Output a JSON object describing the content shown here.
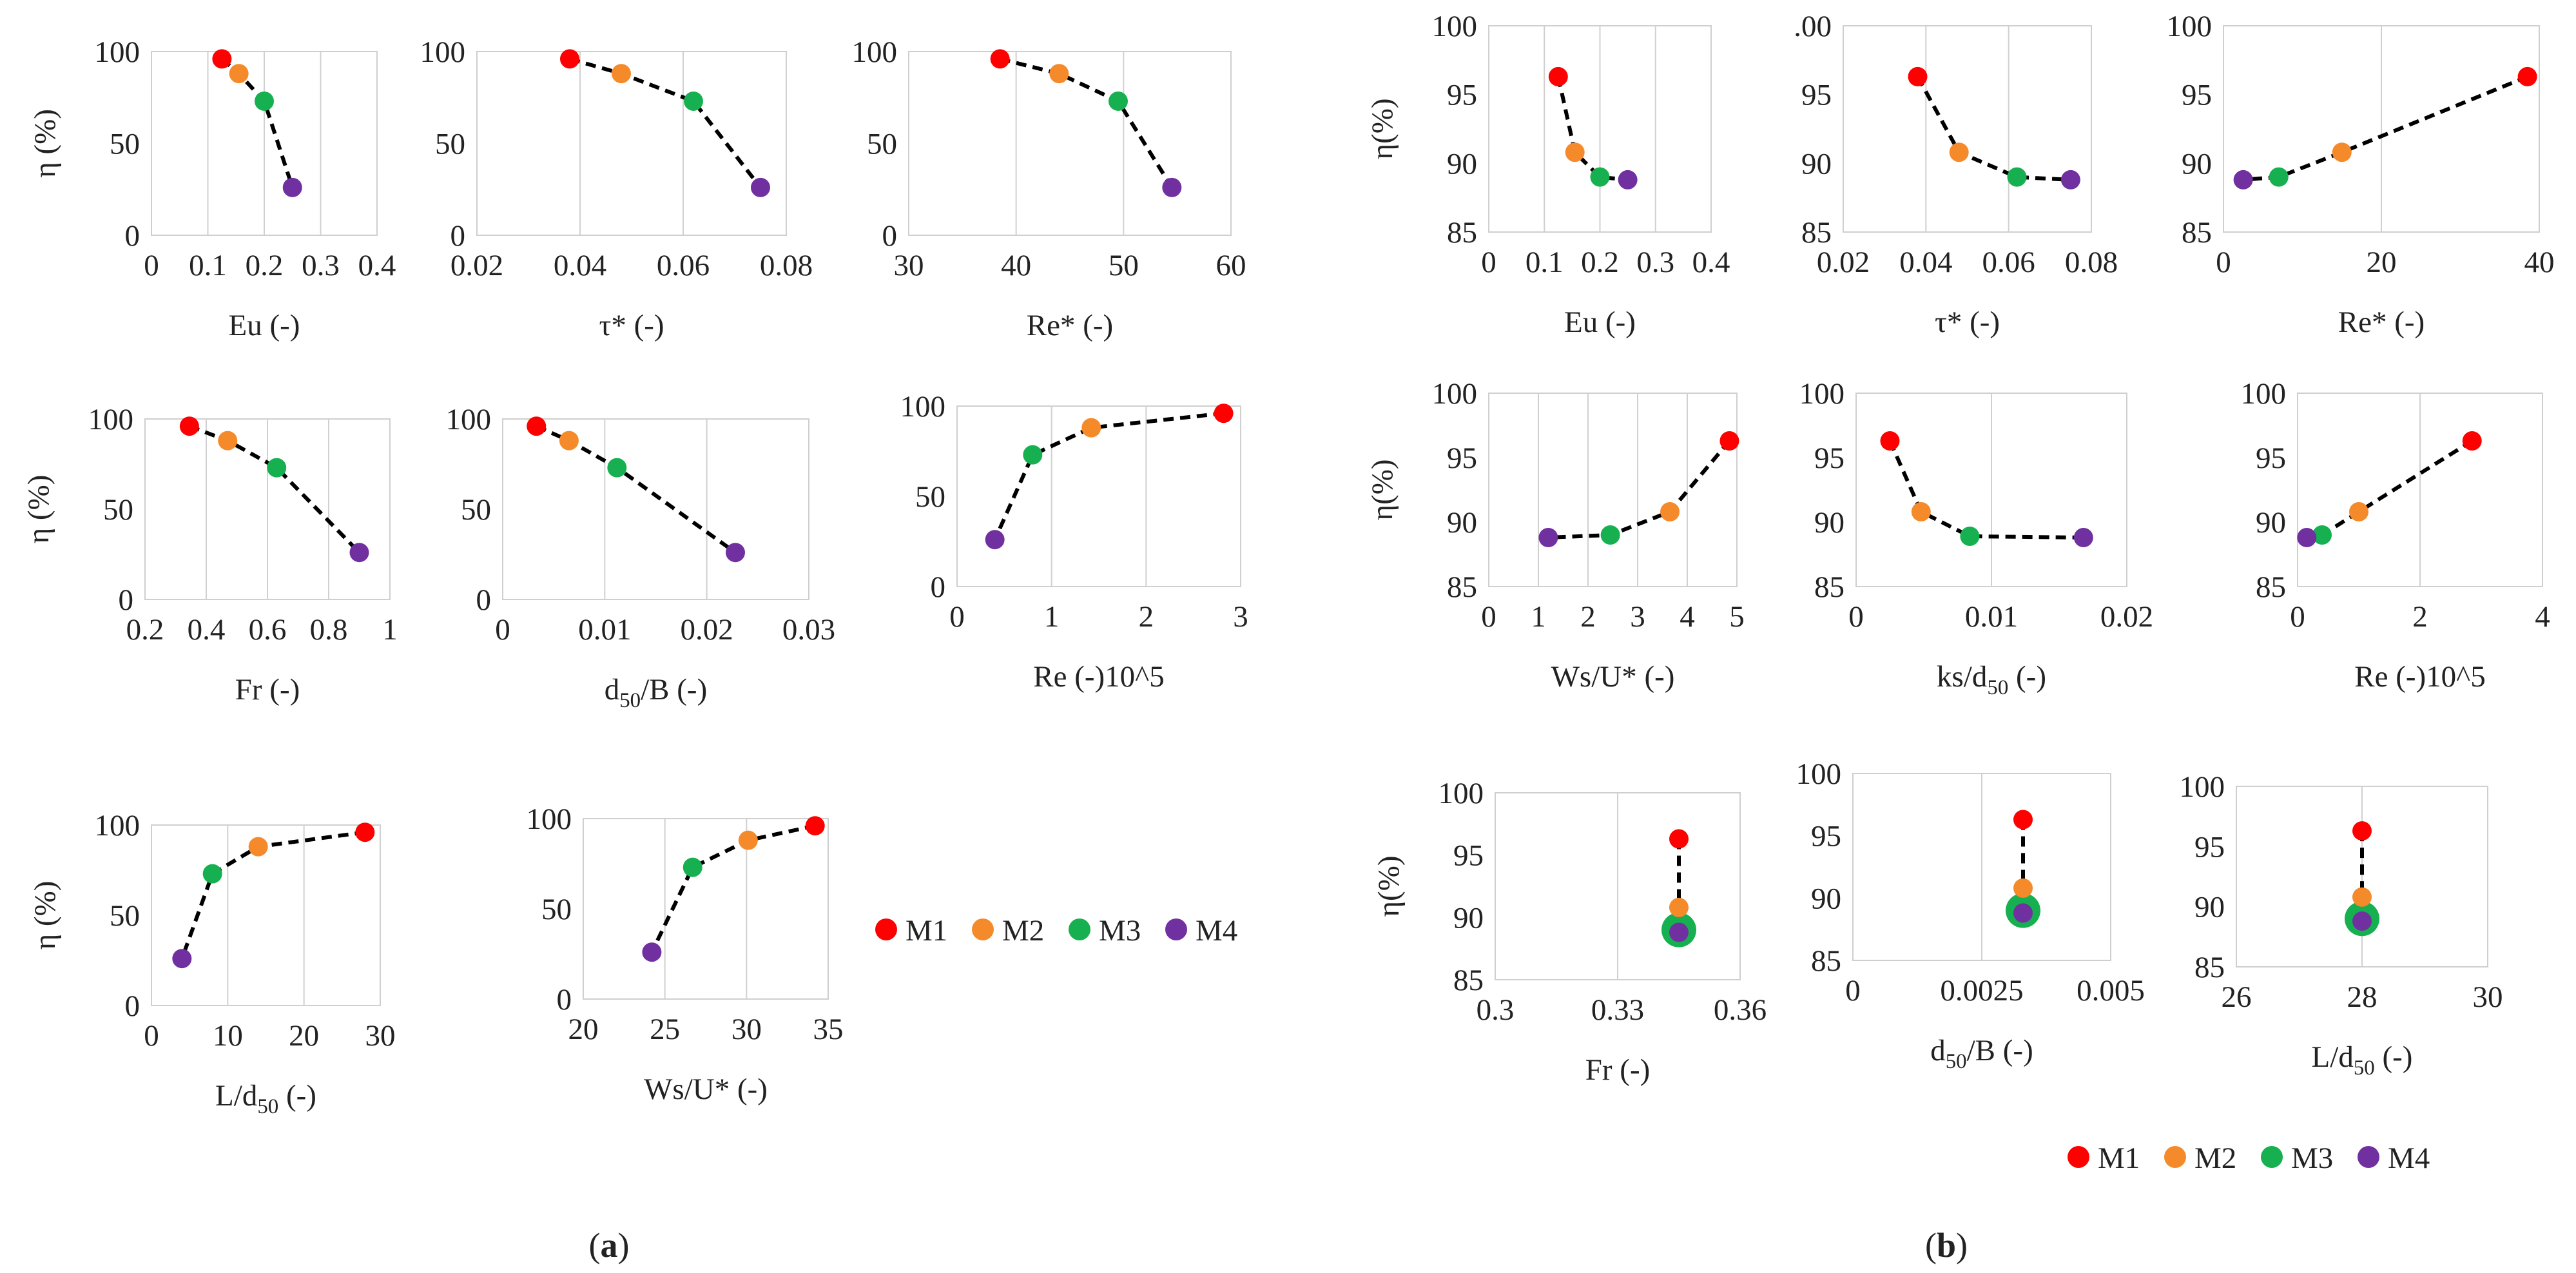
{
  "colors": {
    "M1": "#ff0000",
    "M2": "#f58a2b",
    "M3": "#16b050",
    "M4": "#7030a0"
  },
  "panel_labels": [
    "(a)",
    "(b)"
  ],
  "legends": [
    {
      "panel": "a",
      "items": [
        "M1",
        "M2",
        "M3",
        "M4"
      ]
    },
    {
      "panel": "b",
      "items": [
        "M1",
        "M2",
        "M3",
        "M4"
      ]
    }
  ],
  "chart_data": [
    {
      "id": "a1",
      "type": "scatter",
      "xlabel": "Eu (-)",
      "ylabel": "η (%)",
      "xlim": [
        0,
        0.4
      ],
      "ylim": [
        0,
        100
      ],
      "xticks": [
        "0",
        "0.1",
        "0.2",
        "0.3",
        "0.4"
      ],
      "yticks": [
        "0",
        "50",
        "100"
      ],
      "series": [
        {
          "name": "M1",
          "x": 0.125,
          "y": 96
        },
        {
          "name": "M2",
          "x": 0.155,
          "y": 88
        },
        {
          "name": "M3",
          "x": 0.2,
          "y": 73
        },
        {
          "name": "M4",
          "x": 0.25,
          "y": 26
        }
      ]
    },
    {
      "id": "a2",
      "type": "scatter",
      "xlabel": "τ* (-)",
      "ylabel": "",
      "xlim": [
        0.02,
        0.08
      ],
      "ylim": [
        0,
        100
      ],
      "xticks": [
        "0.02",
        "0.04",
        "0.06",
        "0.08"
      ],
      "yticks": [
        "0",
        "50",
        "100"
      ],
      "series": [
        {
          "name": "M1",
          "x": 0.038,
          "y": 96
        },
        {
          "name": "M2",
          "x": 0.048,
          "y": 88
        },
        {
          "name": "M3",
          "x": 0.062,
          "y": 73
        },
        {
          "name": "M4",
          "x": 0.075,
          "y": 26
        }
      ]
    },
    {
      "id": "a3",
      "type": "scatter",
      "xlabel": "Re* (-)",
      "ylabel": "",
      "xlim": [
        30,
        60
      ],
      "ylim": [
        0,
        100
      ],
      "xticks": [
        "30",
        "40",
        "50",
        "60"
      ],
      "yticks": [
        "0",
        "50",
        "100"
      ],
      "series": [
        {
          "name": "M1",
          "x": 38.5,
          "y": 96
        },
        {
          "name": "M2",
          "x": 44,
          "y": 88
        },
        {
          "name": "M3",
          "x": 49.5,
          "y": 73
        },
        {
          "name": "M4",
          "x": 54.5,
          "y": 26
        }
      ]
    },
    {
      "id": "a4",
      "type": "scatter",
      "xlabel": "Fr (-)",
      "ylabel": "η (%)",
      "xlim": [
        0.2,
        1
      ],
      "ylim": [
        0,
        100
      ],
      "xticks": [
        "0.2",
        "0.4",
        "0.6",
        "0.8",
        "1"
      ],
      "yticks": [
        "0",
        "50",
        "100"
      ],
      "series": [
        {
          "name": "M1",
          "x": 0.345,
          "y": 96
        },
        {
          "name": "M2",
          "x": 0.47,
          "y": 88
        },
        {
          "name": "M3",
          "x": 0.63,
          "y": 73
        },
        {
          "name": "M4",
          "x": 0.9,
          "y": 26
        }
      ]
    },
    {
      "id": "a5",
      "type": "scatter",
      "xlabel": "d50/B (-)",
      "ylabel": "",
      "xlim": [
        0,
        0.03
      ],
      "ylim": [
        0,
        100
      ],
      "xticks": [
        "0",
        "0.01",
        "0.02",
        "0.03"
      ],
      "yticks": [
        "0",
        "50",
        "100"
      ],
      "series": [
        {
          "name": "M1",
          "x": 0.0033,
          "y": 96
        },
        {
          "name": "M2",
          "x": 0.0065,
          "y": 88
        },
        {
          "name": "M3",
          "x": 0.0112,
          "y": 73
        },
        {
          "name": "M4",
          "x": 0.0228,
          "y": 26
        }
      ]
    },
    {
      "id": "a6",
      "type": "scatter",
      "xlabel": "Re (-)10^5",
      "ylabel": "",
      "xlim": [
        0,
        3
      ],
      "ylim": [
        0,
        100
      ],
      "xticks": [
        "0",
        "1",
        "2",
        "3"
      ],
      "yticks": [
        "0",
        "50",
        "100"
      ],
      "series": [
        {
          "name": "M1",
          "x": 2.82,
          "y": 96
        },
        {
          "name": "M2",
          "x": 1.42,
          "y": 88
        },
        {
          "name": "M3",
          "x": 0.8,
          "y": 73
        },
        {
          "name": "M4",
          "x": 0.4,
          "y": 26
        }
      ]
    },
    {
      "id": "a7",
      "type": "scatter",
      "xlabel": "L/d50 (-)",
      "ylabel": "η (%)",
      "xlim": [
        0,
        30
      ],
      "ylim": [
        0,
        100
      ],
      "xticks": [
        "0",
        "10",
        "20",
        "30"
      ],
      "yticks": [
        "0",
        "50",
        "100"
      ],
      "series": [
        {
          "name": "M1",
          "x": 28,
          "y": 96
        },
        {
          "name": "M2",
          "x": 14,
          "y": 88
        },
        {
          "name": "M3",
          "x": 8,
          "y": 73
        },
        {
          "name": "M4",
          "x": 4,
          "y": 26
        }
      ]
    },
    {
      "id": "a8",
      "type": "scatter",
      "xlabel": "Ws/U* (-)",
      "ylabel": "",
      "xlim": [
        20,
        35
      ],
      "ylim": [
        0,
        100
      ],
      "xticks": [
        "20",
        "25",
        "30",
        "35"
      ],
      "yticks": [
        "0",
        "50",
        "100"
      ],
      "series": [
        {
          "name": "M1",
          "x": 34.2,
          "y": 96
        },
        {
          "name": "M2",
          "x": 30.1,
          "y": 88
        },
        {
          "name": "M3",
          "x": 26.7,
          "y": 73
        },
        {
          "name": "M4",
          "x": 24.2,
          "y": 26
        }
      ]
    },
    {
      "id": "b1",
      "type": "scatter",
      "xlabel": "Eu (-)",
      "ylabel": "η(%)",
      "xlim": [
        0,
        0.4
      ],
      "ylim": [
        85,
        100
      ],
      "xticks": [
        "0",
        "0.1",
        "0.2",
        "0.3",
        "0.4"
      ],
      "yticks": [
        "85",
        "90",
        "95",
        "100"
      ],
      "series": [
        {
          "name": "M1",
          "x": 0.125,
          "y": 96.3
        },
        {
          "name": "M2",
          "x": 0.155,
          "y": 90.8
        },
        {
          "name": "M3",
          "x": 0.2,
          "y": 89
        },
        {
          "name": "M4",
          "x": 0.25,
          "y": 88.8
        }
      ]
    },
    {
      "id": "b2",
      "type": "scatter",
      "xlabel": "τ* (-)",
      "ylabel": "",
      "xlim": [
        0.02,
        0.08
      ],
      "ylim": [
        85,
        100
      ],
      "xticks": [
        "0.02",
        "0.04",
        "0.06",
        "0.08"
      ],
      "yticks": [
        "85",
        "90",
        "95",
        ".00"
      ],
      "series": [
        {
          "name": "M1",
          "x": 0.038,
          "y": 96.3
        },
        {
          "name": "M2",
          "x": 0.048,
          "y": 90.8
        },
        {
          "name": "M3",
          "x": 0.062,
          "y": 89
        },
        {
          "name": "M4",
          "x": 0.075,
          "y": 88.8
        }
      ]
    },
    {
      "id": "b3",
      "type": "scatter",
      "xlabel": "Re* (-)",
      "ylabel": "",
      "xlim": [
        0,
        40
      ],
      "ylim": [
        85,
        100
      ],
      "xticks": [
        "0",
        "20",
        "40"
      ],
      "yticks": [
        "85",
        "90",
        "95",
        "100"
      ],
      "series": [
        {
          "name": "M1",
          "x": 38.5,
          "y": 96.3
        },
        {
          "name": "M2",
          "x": 15,
          "y": 90.8
        },
        {
          "name": "M3",
          "x": 7,
          "y": 89
        },
        {
          "name": "M4",
          "x": 2.5,
          "y": 88.8
        }
      ]
    },
    {
      "id": "b4",
      "type": "scatter",
      "xlabel": "Ws/U* (-)",
      "ylabel": "η(%)",
      "xlim": [
        0,
        5
      ],
      "ylim": [
        85,
        100
      ],
      "xticks": [
        "0",
        "1",
        "2",
        "3",
        "4",
        "5"
      ],
      "yticks": [
        "85",
        "90",
        "95",
        "100"
      ],
      "series": [
        {
          "name": "M1",
          "x": 4.85,
          "y": 96.3
        },
        {
          "name": "M2",
          "x": 3.65,
          "y": 90.8
        },
        {
          "name": "M3",
          "x": 2.45,
          "y": 89
        },
        {
          "name": "M4",
          "x": 1.2,
          "y": 88.8
        }
      ]
    },
    {
      "id": "b5",
      "type": "scatter",
      "xlabel": "ks/d50 (-)",
      "ylabel": "",
      "xlim": [
        0,
        0.02
      ],
      "ylim": [
        85,
        100
      ],
      "xticks": [
        "0",
        "0.01",
        "0.02"
      ],
      "yticks": [
        "85",
        "90",
        "95",
        "100"
      ],
      "series": [
        {
          "name": "M1",
          "x": 0.0025,
          "y": 96.3
        },
        {
          "name": "M2",
          "x": 0.0048,
          "y": 90.8
        },
        {
          "name": "M3",
          "x": 0.0084,
          "y": 88.9
        },
        {
          "name": "M4",
          "x": 0.0168,
          "y": 88.8
        }
      ]
    },
    {
      "id": "b6",
      "type": "scatter",
      "xlabel": "Re (-)10^5",
      "ylabel": "",
      "xlim": [
        0,
        4
      ],
      "ylim": [
        85,
        100
      ],
      "xticks": [
        "0",
        "2",
        "4"
      ],
      "yticks": [
        "85",
        "90",
        "95",
        "100"
      ],
      "series": [
        {
          "name": "M1",
          "x": 2.85,
          "y": 96.3
        },
        {
          "name": "M2",
          "x": 1.0,
          "y": 90.8
        },
        {
          "name": "M3",
          "x": 0.4,
          "y": 89
        },
        {
          "name": "M4",
          "x": 0.15,
          "y": 88.8
        }
      ]
    },
    {
      "id": "b7",
      "type": "scatter",
      "xlabel": "Fr (-)",
      "ylabel": "η(%)",
      "xlim": [
        0.3,
        0.36
      ],
      "ylim": [
        85,
        100
      ],
      "xticks": [
        "0.3",
        "0.33",
        "0.36"
      ],
      "yticks": [
        "85",
        "90",
        "95",
        "100"
      ],
      "series": [
        {
          "name": "M1",
          "x": 0.345,
          "y": 96.3
        },
        {
          "name": "M2",
          "x": 0.345,
          "y": 90.8
        },
        {
          "name": "M3",
          "x": 0.345,
          "y": 89,
          "large": true
        },
        {
          "name": "M4",
          "x": 0.345,
          "y": 88.8
        }
      ]
    },
    {
      "id": "b8",
      "type": "scatter",
      "xlabel": "d50/B (-)",
      "ylabel": "",
      "xlim": [
        0,
        0.005
      ],
      "ylim": [
        85,
        100
      ],
      "xticks": [
        "0",
        "0.0025",
        "0.005"
      ],
      "yticks": [
        "85",
        "90",
        "95",
        "100"
      ],
      "series": [
        {
          "name": "M1",
          "x": 0.0033,
          "y": 96.3
        },
        {
          "name": "M2",
          "x": 0.0033,
          "y": 90.8
        },
        {
          "name": "M3",
          "x": 0.0033,
          "y": 89,
          "large": true
        },
        {
          "name": "M4",
          "x": 0.0033,
          "y": 88.8
        }
      ]
    },
    {
      "id": "b9",
      "type": "scatter",
      "xlabel": "L/d50 (-)",
      "ylabel": "",
      "xlim": [
        26,
        30
      ],
      "ylim": [
        85,
        100
      ],
      "xticks": [
        "26",
        "28",
        "30"
      ],
      "yticks": [
        "85",
        "90",
        "95",
        "100"
      ],
      "series": [
        {
          "name": "M1",
          "x": 28,
          "y": 96.3
        },
        {
          "name": "M2",
          "x": 28,
          "y": 90.8
        },
        {
          "name": "M3",
          "x": 28,
          "y": 89,
          "large": true
        },
        {
          "name": "M4",
          "x": 28,
          "y": 88.8
        }
      ]
    }
  ]
}
